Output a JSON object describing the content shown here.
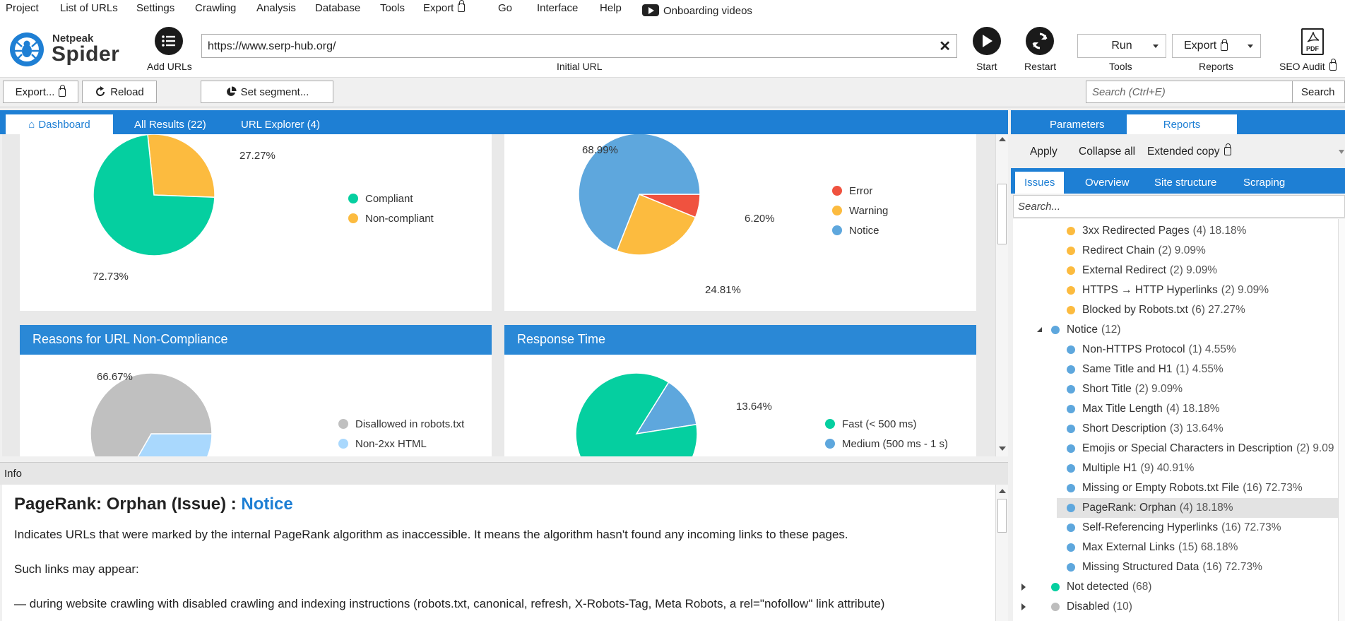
{
  "menu": {
    "items": [
      "Project",
      "List of URLs",
      "Settings",
      "Crawling",
      "Analysis",
      "Database",
      "Tools",
      "Export",
      "Go",
      "Interface",
      "Help"
    ],
    "onboarding": "Onboarding videos"
  },
  "brand": {
    "line1": "Netpeak",
    "line2": "Spider"
  },
  "toolbar": {
    "add_urls": "Add URLs",
    "url_value": "https://www.serp-hub.org/",
    "url_label": "Initial URL",
    "start": "Start",
    "restart": "Restart",
    "tools_value": "Run",
    "tools_label": "Tools",
    "reports_value": "Export",
    "reports_label": "Reports",
    "seo_audit": "SEO Audit",
    "pdf": "PDF"
  },
  "secbar": {
    "export": "Export...",
    "reload": "Reload",
    "segment": "Set segment...",
    "search_placeholder": "Search (Ctrl+E)",
    "search_btn": "Search"
  },
  "main_tabs": [
    "Dashboard",
    "All Results (22)",
    "URL Explorer (4)"
  ],
  "charts": {
    "compliance": {
      "legend": [
        "Compliant",
        "Non-compliant"
      ],
      "labels": [
        "27.27%",
        "72.73%"
      ]
    },
    "issues": {
      "legend": [
        "Error",
        "Warning",
        "Notice"
      ],
      "labels": [
        "68.99%",
        "6.20%",
        "24.81%"
      ]
    },
    "noncompliance": {
      "title": "Reasons for URL Non-Compliance",
      "labels": [
        "66.67%"
      ],
      "legend": [
        "Disallowed in robots.txt",
        "Non-2xx HTML"
      ]
    },
    "response": {
      "title": "Response Time",
      "labels": [
        "13.64%"
      ],
      "legend": [
        "Fast (< 500 ms)",
        "Medium (500 ms - 1 s)"
      ]
    }
  },
  "chart_data": [
    {
      "type": "pie",
      "categories": [
        "Compliant",
        "Non-compliant"
      ],
      "values": [
        72.73,
        27.27
      ],
      "legend": "right"
    },
    {
      "type": "pie",
      "categories": [
        "Error",
        "Warning",
        "Notice"
      ],
      "values": [
        6.2,
        24.81,
        68.99
      ],
      "legend": "right"
    },
    {
      "type": "pie",
      "title": "Reasons for URL Non-Compliance",
      "categories": [
        "Disallowed in robots.txt",
        "Non-2xx HTML"
      ],
      "values": [
        66.67,
        33.33
      ],
      "legend": "right"
    },
    {
      "type": "pie",
      "title": "Response Time",
      "categories": [
        "Fast (< 500 ms)",
        "Medium (500 ms - 1 s)"
      ],
      "values": [
        86.36,
        13.64
      ],
      "legend": "right"
    }
  ],
  "colors": {
    "accent": "#1e7fd4",
    "compliant": "#05cfa0",
    "noncompliant": "#fcbb3f",
    "error": "#f0523f",
    "warning": "#fcbb3f",
    "notice": "#5ea7dd",
    "gray": "#c0c0c0",
    "lightblue": "#a9d8fd"
  },
  "info": {
    "header": "Info",
    "title": "PageRank: Orphan (Issue) : ",
    "title_severity": "Notice",
    "p1": "Indicates URLs that were marked by the internal PageRank algorithm as inaccessible. It means the algorithm hasn't found any incoming links to these pages.",
    "p2": "Such links may appear:",
    "p3": "— during website crawling with disabled crawling and indexing instructions (robots.txt, canonical, refresh, X-Robots-Tag, Meta Robots, a rel=\"nofollow\" link attribute)"
  },
  "right": {
    "tabs": [
      "Parameters",
      "Reports"
    ],
    "actions": [
      "Apply",
      "Collapse all",
      "Extended copy"
    ],
    "subtabs": [
      "Issues",
      "Overview",
      "Site structure",
      "Scraping"
    ],
    "search_placeholder": "Search...",
    "tree": [
      {
        "label": "3xx Redirected Pages",
        "meta": "(4) 18.18%",
        "color": "#fcbb3f",
        "level": 2
      },
      {
        "label": "Redirect Chain",
        "meta": "(2) 9.09%",
        "color": "#fcbb3f",
        "level": 2
      },
      {
        "label": "External Redirect",
        "meta": "(2) 9.09%",
        "color": "#fcbb3f",
        "level": 2
      },
      {
        "label": "HTTPS → HTTP Hyperlinks",
        "meta": "(2) 9.09%",
        "color": "#fcbb3f",
        "level": 2
      },
      {
        "label": "Blocked by Robots.txt",
        "meta": "(6) 27.27%",
        "color": "#fcbb3f",
        "level": 2
      },
      {
        "label": "Notice",
        "meta": "(12)",
        "color": "#5ea7dd",
        "level": 1,
        "expanded": true
      },
      {
        "label": "Non-HTTPS Protocol",
        "meta": "(1) 4.55%",
        "color": "#5ea7dd",
        "level": 2
      },
      {
        "label": "Same Title and H1",
        "meta": "(1) 4.55%",
        "color": "#5ea7dd",
        "level": 2
      },
      {
        "label": "Short Title",
        "meta": "(2) 9.09%",
        "color": "#5ea7dd",
        "level": 2
      },
      {
        "label": "Max Title Length",
        "meta": "(4) 18.18%",
        "color": "#5ea7dd",
        "level": 2
      },
      {
        "label": "Short Description",
        "meta": "(3) 13.64%",
        "color": "#5ea7dd",
        "level": 2
      },
      {
        "label": "Emojis or Special Characters in Description",
        "meta": "(2) 9.09",
        "color": "#5ea7dd",
        "level": 2
      },
      {
        "label": "Multiple H1",
        "meta": "(9) 40.91%",
        "color": "#5ea7dd",
        "level": 2
      },
      {
        "label": "Missing or Empty Robots.txt File",
        "meta": "(16) 72.73%",
        "color": "#5ea7dd",
        "level": 2
      },
      {
        "label": "PageRank: Orphan",
        "meta": "(4) 18.18%",
        "color": "#5ea7dd",
        "level": 2,
        "selected": true
      },
      {
        "label": "Self-Referencing Hyperlinks",
        "meta": "(16) 72.73%",
        "color": "#5ea7dd",
        "level": 2
      },
      {
        "label": "Max External Links",
        "meta": "(15) 68.18%",
        "color": "#5ea7dd",
        "level": 2
      },
      {
        "label": "Missing Structured Data",
        "meta": "(16) 72.73%",
        "color": "#5ea7dd",
        "level": 2
      },
      {
        "label": "Not detected",
        "meta": "(68)",
        "color": "#05cfa0",
        "level": 1,
        "expanded": false
      },
      {
        "label": "Disabled",
        "meta": "(10)",
        "color": "#bdbdbd",
        "level": 1,
        "expanded": false
      }
    ]
  }
}
